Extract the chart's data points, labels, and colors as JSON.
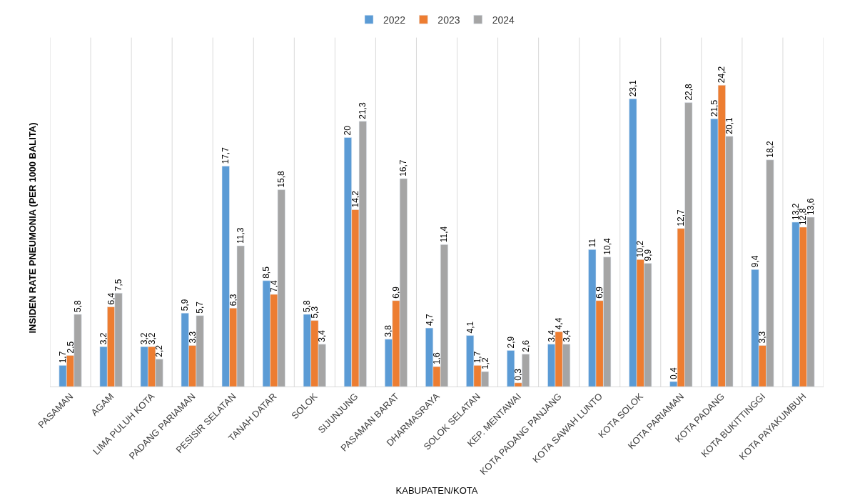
{
  "chart_data": {
    "type": "bar",
    "xlabel": "KABUPATEN/KOTA",
    "ylabel": "INSIDEN RATE PNEUMONIA (PER 1000 BALITA)",
    "categories": [
      "PASAMAN",
      "AGAM",
      "LIMA PULUH KOTA",
      "PADANG PARIAMAN",
      "PESISIR SELATAN",
      "TANAH DATAR",
      "SOLOK",
      "SIJUNJUNG",
      "PASAMAN BARAT",
      "DHARMASRAYA",
      "SOLOK SELATAN",
      "KEP. MENTAWAI",
      "KOTA PADANG PANJANG",
      "KOTA SAWAH LUNTO",
      "KOTA SOLOK",
      "KOTA PARIAMAN",
      "KOTA PADANG",
      "KOTA BUKITTINGGI",
      "KOTA PAYAKUMBUH"
    ],
    "series": [
      {
        "name": "2022",
        "color": "#5b9bd5",
        "values": [
          1.7,
          3.2,
          3.2,
          5.9,
          17.7,
          8.5,
          5.8,
          20,
          3.8,
          4.7,
          4.1,
          2.9,
          3.4,
          11,
          23.1,
          0.4,
          21.5,
          9.4,
          13.2
        ],
        "value_labels": [
          "1,7",
          "3,2",
          "3,2",
          "5,9",
          "17,7",
          "8,5",
          "5,8",
          "20",
          "3,8",
          "4,7",
          "4,1",
          "2,9",
          "3,4",
          "11",
          "23,1",
          "0,4",
          "21,5",
          "9,4",
          "13,2"
        ]
      },
      {
        "name": "2023",
        "color": "#ed7d31",
        "values": [
          2.5,
          6.4,
          3.2,
          3.3,
          6.3,
          7.4,
          5.3,
          14.2,
          6.9,
          1.6,
          1.7,
          0.3,
          4.4,
          6.9,
          10.2,
          12.7,
          24.2,
          3.3,
          12.8
        ],
        "value_labels": [
          "2,5",
          "6,4",
          "3,2",
          "3,3",
          "6,3",
          "7,4",
          "5,3",
          "14,2",
          "6,9",
          "1,6",
          "1,7",
          "0,3",
          "4,4",
          "6,9",
          "10,2",
          "12,7",
          "24,2",
          "3,3",
          "12,8"
        ]
      },
      {
        "name": "2024",
        "color": "#a5a5a5",
        "values": [
          5.8,
          7.5,
          2.2,
          5.7,
          11.3,
          15.8,
          3.4,
          21.3,
          16.7,
          11.4,
          1.2,
          2.6,
          3.4,
          10.4,
          9.9,
          22.8,
          20.1,
          18.2,
          13.6
        ],
        "value_labels": [
          "5,8",
          "7,5",
          "2,2",
          "5,7",
          "11,3",
          "15,8",
          "3,4",
          "21,3",
          "16,7",
          "11,4",
          "1,2",
          "2,6",
          "3,4",
          "10,4",
          "9,9",
          "22,8",
          "20,1",
          "18,2",
          "13,6"
        ]
      }
    ],
    "grid": "x",
    "legend": "top"
  }
}
